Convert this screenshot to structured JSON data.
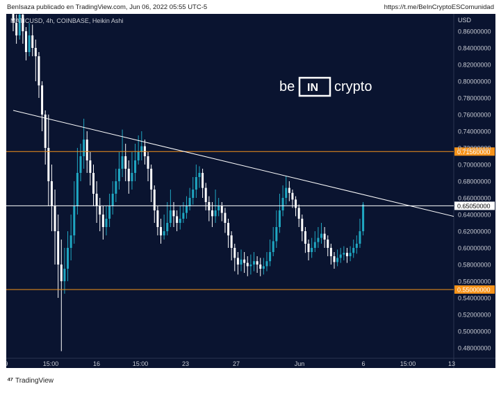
{
  "header": {
    "published_by": "BenIsaza publicado en TradingView.com, Jun 06, 2022 05:55 UTC-5",
    "link": "https://t.me/BeInCryptoESComunidad"
  },
  "footer": {
    "brand": "TradingView",
    "logo_icon": "tradingview-logo-icon"
  },
  "watermark": {
    "left": "be",
    "mid": "IN",
    "right": "crypto"
  },
  "colors": {
    "background": "#0a1430",
    "up": "#1fa7c2",
    "down": "#ffffff",
    "level": "#f7931a",
    "trend": "#ffffff"
  },
  "chart_data": {
    "type": "candlestick",
    "title": "MATICUSD, 4h, COINBASE, Heikin Ashi",
    "ylabel": "USD",
    "ylim": [
      0.47,
      0.87
    ],
    "y_ticks": [
      "0.86000000",
      "0.84000000",
      "0.82000000",
      "0.80000000",
      "0.78000000",
      "0.76000000",
      "0.74000000",
      "0.72000000",
      "0.70000000",
      "0.68000000",
      "0.66000000",
      "0.64000000",
      "0.62000000",
      "0.60000000",
      "0.58000000",
      "0.56000000",
      "0.54000000",
      "0.52000000",
      "0.50000000",
      "0.48000000"
    ],
    "x_ticks": [
      "9",
      "15:00",
      "16",
      "15:00",
      "23",
      "27",
      "Jun",
      "6",
      "15:00",
      "13"
    ],
    "levels": [
      {
        "value": 0.7156,
        "label": "0.71560000",
        "color": "#f7931a"
      },
      {
        "value": 0.6505,
        "label": "0.65050000",
        "color": "#ffffff"
      },
      {
        "value": 0.55,
        "label": "0.55000000",
        "color": "#f7931a"
      }
    ],
    "trendline": {
      "from": [
        0,
        0.765
      ],
      "to": [
        150,
        0.626
      ]
    },
    "candles": [
      [
        0.9,
        0.87,
        0.905,
        0.86
      ],
      [
        0.87,
        0.855,
        0.88,
        0.845
      ],
      [
        0.855,
        0.88,
        0.89,
        0.85
      ],
      [
        0.88,
        0.86,
        0.885,
        0.845
      ],
      [
        0.86,
        0.835,
        0.865,
        0.825
      ],
      [
        0.835,
        0.855,
        0.87,
        0.83
      ],
      [
        0.855,
        0.84,
        0.868,
        0.83
      ],
      [
        0.84,
        0.83,
        0.85,
        0.8
      ],
      [
        0.83,
        0.795,
        0.835,
        0.78
      ],
      [
        0.795,
        0.76,
        0.8,
        0.74
      ],
      [
        0.76,
        0.72,
        0.765,
        0.7
      ],
      [
        0.72,
        0.68,
        0.76,
        0.65
      ],
      [
        0.68,
        0.65,
        0.7,
        0.62
      ],
      [
        0.65,
        0.62,
        0.67,
        0.58
      ],
      [
        0.62,
        0.58,
        0.64,
        0.54
      ],
      [
        0.58,
        0.56,
        0.61,
        0.476
      ],
      [
        0.56,
        0.575,
        0.6,
        0.545
      ],
      [
        0.575,
        0.6,
        0.62,
        0.56
      ],
      [
        0.6,
        0.615,
        0.64,
        0.585
      ],
      [
        0.615,
        0.65,
        0.68,
        0.605
      ],
      [
        0.65,
        0.69,
        0.72,
        0.64
      ],
      [
        0.69,
        0.71,
        0.725,
        0.68
      ],
      [
        0.71,
        0.73,
        0.755,
        0.695
      ],
      [
        0.73,
        0.705,
        0.74,
        0.69
      ],
      [
        0.705,
        0.69,
        0.715,
        0.675
      ],
      [
        0.69,
        0.665,
        0.7,
        0.65
      ],
      [
        0.665,
        0.65,
        0.68,
        0.63
      ],
      [
        0.65,
        0.64,
        0.66,
        0.62
      ],
      [
        0.64,
        0.625,
        0.65,
        0.61
      ],
      [
        0.625,
        0.635,
        0.65,
        0.615
      ],
      [
        0.635,
        0.65,
        0.665,
        0.625
      ],
      [
        0.65,
        0.665,
        0.68,
        0.64
      ],
      [
        0.665,
        0.68,
        0.695,
        0.655
      ],
      [
        0.68,
        0.695,
        0.715,
        0.67
      ],
      [
        0.695,
        0.71,
        0.742,
        0.685
      ],
      [
        0.71,
        0.695,
        0.725,
        0.68
      ],
      [
        0.695,
        0.68,
        0.705,
        0.665
      ],
      [
        0.68,
        0.69,
        0.715,
        0.67
      ],
      [
        0.69,
        0.705,
        0.725,
        0.68
      ],
      [
        0.705,
        0.715,
        0.735,
        0.7
      ],
      [
        0.715,
        0.722,
        0.74,
        0.705
      ],
      [
        0.722,
        0.71,
        0.73,
        0.7
      ],
      [
        0.71,
        0.695,
        0.715,
        0.68
      ],
      [
        0.695,
        0.67,
        0.7,
        0.655
      ],
      [
        0.67,
        0.645,
        0.675,
        0.63
      ],
      [
        0.645,
        0.625,
        0.65,
        0.615
      ],
      [
        0.625,
        0.615,
        0.635,
        0.605
      ],
      [
        0.615,
        0.62,
        0.64,
        0.61
      ],
      [
        0.62,
        0.63,
        0.655,
        0.615
      ],
      [
        0.63,
        0.645,
        0.67,
        0.625
      ],
      [
        0.645,
        0.638,
        0.655,
        0.625
      ],
      [
        0.638,
        0.63,
        0.645,
        0.62
      ],
      [
        0.63,
        0.635,
        0.65,
        0.622
      ],
      [
        0.635,
        0.642,
        0.655,
        0.63
      ],
      [
        0.642,
        0.65,
        0.662,
        0.635
      ],
      [
        0.65,
        0.66,
        0.672,
        0.645
      ],
      [
        0.66,
        0.67,
        0.685,
        0.652
      ],
      [
        0.67,
        0.685,
        0.7,
        0.66
      ],
      [
        0.685,
        0.69,
        0.698,
        0.672
      ],
      [
        0.69,
        0.672,
        0.695,
        0.66
      ],
      [
        0.672,
        0.655,
        0.678,
        0.645
      ],
      [
        0.655,
        0.645,
        0.662,
        0.632
      ],
      [
        0.645,
        0.638,
        0.655,
        0.625
      ],
      [
        0.638,
        0.645,
        0.67,
        0.63
      ],
      [
        0.645,
        0.65,
        0.66,
        0.638
      ],
      [
        0.65,
        0.642,
        0.655,
        0.632
      ],
      [
        0.642,
        0.63,
        0.648,
        0.618
      ],
      [
        0.63,
        0.615,
        0.635,
        0.6
      ],
      [
        0.615,
        0.6,
        0.62,
        0.585
      ],
      [
        0.6,
        0.588,
        0.605,
        0.572
      ],
      [
        0.588,
        0.58,
        0.595,
        0.568
      ],
      [
        0.58,
        0.586,
        0.598,
        0.572
      ],
      [
        0.586,
        0.582,
        0.595,
        0.57
      ],
      [
        0.582,
        0.578,
        0.59,
        0.566
      ],
      [
        0.578,
        0.58,
        0.592,
        0.568
      ],
      [
        0.58,
        0.584,
        0.595,
        0.572
      ],
      [
        0.584,
        0.58,
        0.59,
        0.57
      ],
      [
        0.58,
        0.575,
        0.588,
        0.566
      ],
      [
        0.575,
        0.578,
        0.588,
        0.568
      ],
      [
        0.578,
        0.584,
        0.595,
        0.572
      ],
      [
        0.584,
        0.595,
        0.61,
        0.578
      ],
      [
        0.595,
        0.608,
        0.625,
        0.59
      ],
      [
        0.608,
        0.625,
        0.645,
        0.6
      ],
      [
        0.625,
        0.645,
        0.665,
        0.618
      ],
      [
        0.645,
        0.66,
        0.675,
        0.638
      ],
      [
        0.66,
        0.672,
        0.686,
        0.652
      ],
      [
        0.672,
        0.666,
        0.68,
        0.656
      ],
      [
        0.666,
        0.658,
        0.67,
        0.648
      ],
      [
        0.658,
        0.648,
        0.662,
        0.638
      ],
      [
        0.648,
        0.635,
        0.652,
        0.625
      ],
      [
        0.635,
        0.62,
        0.64,
        0.608
      ],
      [
        0.62,
        0.605,
        0.625,
        0.594
      ],
      [
        0.605,
        0.595,
        0.61,
        0.585
      ],
      [
        0.595,
        0.6,
        0.612,
        0.588
      ],
      [
        0.6,
        0.607,
        0.62,
        0.595
      ],
      [
        0.607,
        0.612,
        0.625,
        0.6
      ],
      [
        0.612,
        0.617,
        0.63,
        0.605
      ],
      [
        0.617,
        0.61,
        0.625,
        0.6
      ],
      [
        0.61,
        0.6,
        0.615,
        0.59
      ],
      [
        0.6,
        0.59,
        0.605,
        0.58
      ],
      [
        0.59,
        0.583,
        0.595,
        0.575
      ],
      [
        0.583,
        0.588,
        0.598,
        0.578
      ],
      [
        0.588,
        0.592,
        0.6,
        0.582
      ],
      [
        0.592,
        0.594,
        0.602,
        0.585
      ],
      [
        0.594,
        0.59,
        0.6,
        0.582
      ],
      [
        0.59,
        0.594,
        0.602,
        0.584
      ],
      [
        0.594,
        0.6,
        0.61,
        0.588
      ],
      [
        0.6,
        0.605,
        0.615,
        0.593
      ],
      [
        0.605,
        0.62,
        0.635,
        0.6
      ],
      [
        0.62,
        0.652,
        0.655,
        0.615
      ]
    ]
  }
}
